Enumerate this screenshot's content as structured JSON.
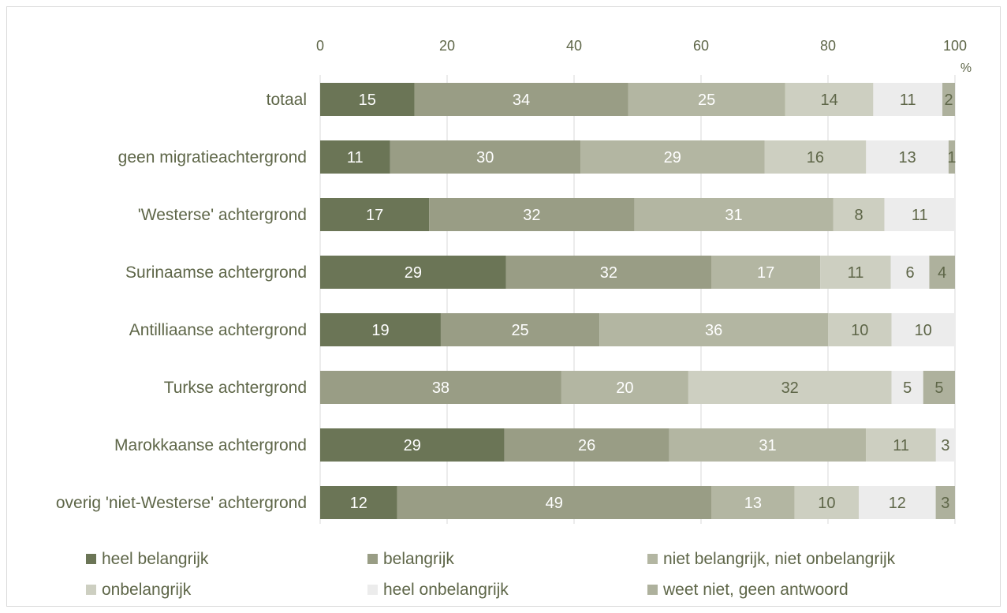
{
  "chart_data": {
    "type": "bar",
    "orientation": "horizontal",
    "stacked": true,
    "categories": [
      "totaal",
      "geen migratieachtergrond",
      "'Westerse' achtergrond",
      "Surinaamse achtergrond",
      "Antilliaanse achtergrond",
      "Turkse achtergrond",
      "Marokkaanse achtergrond",
      "overig 'niet-Westerse' achtergrond"
    ],
    "series": [
      {
        "name": "heel belangrijk",
        "color": "#6b7556",
        "label_color": "#ffffff",
        "values": [
          15,
          11,
          17,
          29,
          19,
          0,
          29,
          12
        ]
      },
      {
        "name": "belangrijk",
        "color": "#999d85",
        "label_color": "#ffffff",
        "values": [
          34,
          30,
          32,
          32,
          25,
          38,
          26,
          49
        ]
      },
      {
        "name": "niet belangrijk, niet onbelangrijk",
        "color": "#b3b6a2",
        "label_color": "#ffffff",
        "values": [
          25,
          29,
          31,
          17,
          36,
          20,
          31,
          13
        ]
      },
      {
        "name": "onbelangrijk",
        "color": "#cdcfc1",
        "label_color": "#5e6648",
        "values": [
          14,
          16,
          8,
          11,
          10,
          32,
          11,
          10
        ]
      },
      {
        "name": "heel onbelangrijk",
        "color": "#ececec",
        "label_color": "#5e6648",
        "values": [
          11,
          13,
          11,
          6,
          10,
          5,
          3,
          12
        ]
      },
      {
        "name": "weet niet, geen antwoord",
        "color": "#aeb19d",
        "label_color": "#5e6648",
        "values": [
          2,
          1,
          0,
          4,
          0,
          5,
          0,
          3
        ]
      }
    ],
    "x_ticks": [
      "0",
      "20",
      "40",
      "60",
      "80",
      "100"
    ],
    "xlim": [
      0,
      100
    ],
    "unit": "%",
    "grid": true,
    "legend_position": "bottom",
    "title": "",
    "xlabel": "",
    "ylabel": ""
  }
}
